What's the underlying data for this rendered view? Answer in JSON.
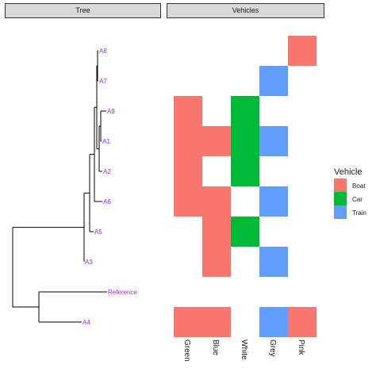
{
  "panels": {
    "tree": "Tree",
    "vehicles": "Vehicles"
  },
  "chart_data": [
    {
      "type": "dendrogram",
      "panel": "Tree",
      "tips": [
        "A8",
        "A7",
        "A9",
        "A1",
        "A2",
        "A6",
        "A5",
        "A3",
        "Reference",
        "A4"
      ],
      "label_color": "#a020f0"
    },
    {
      "type": "heatmap",
      "panel": "Vehicles",
      "x": [
        "Green",
        "Blue",
        "White",
        "Grey",
        "Pink"
      ],
      "y": [
        "A8",
        "A7",
        "A9",
        "A1",
        "A2",
        "A6",
        "A5",
        "A3",
        "Reference",
        "A4"
      ],
      "cells": [
        [
          "A8",
          "Pink",
          "Boat"
        ],
        [
          "A7",
          "Grey",
          "Train"
        ],
        [
          "A9",
          "Green",
          "Boat"
        ],
        [
          "A9",
          "White",
          "Car"
        ],
        [
          "A1",
          "Green",
          "Boat"
        ],
        [
          "A1",
          "Blue",
          "Boat"
        ],
        [
          "A1",
          "White",
          "Car"
        ],
        [
          "A1",
          "Grey",
          "Train"
        ],
        [
          "A2",
          "Green",
          "Boat"
        ],
        [
          "A2",
          "White",
          "Car"
        ],
        [
          "A6",
          "Green",
          "Boat"
        ],
        [
          "A6",
          "Blue",
          "Boat"
        ],
        [
          "A6",
          "Grey",
          "Train"
        ],
        [
          "A5",
          "Blue",
          "Boat"
        ],
        [
          "A5",
          "White",
          "Car"
        ],
        [
          "A3",
          "Blue",
          "Boat"
        ],
        [
          "A3",
          "Grey",
          "Train"
        ],
        [
          "A4",
          "Green",
          "Boat"
        ],
        [
          "A4",
          "Blue",
          "Boat"
        ],
        [
          "A4",
          "Grey",
          "Train"
        ],
        [
          "A4",
          "Pink",
          "Boat"
        ]
      ],
      "legend": {
        "title": "Vehicle",
        "position": "right",
        "entries": [
          {
            "label": "Boat",
            "color": "#f8766d"
          },
          {
            "label": "Car",
            "color": "#00ba38"
          },
          {
            "label": "Train",
            "color": "#619cff"
          }
        ]
      }
    }
  ]
}
